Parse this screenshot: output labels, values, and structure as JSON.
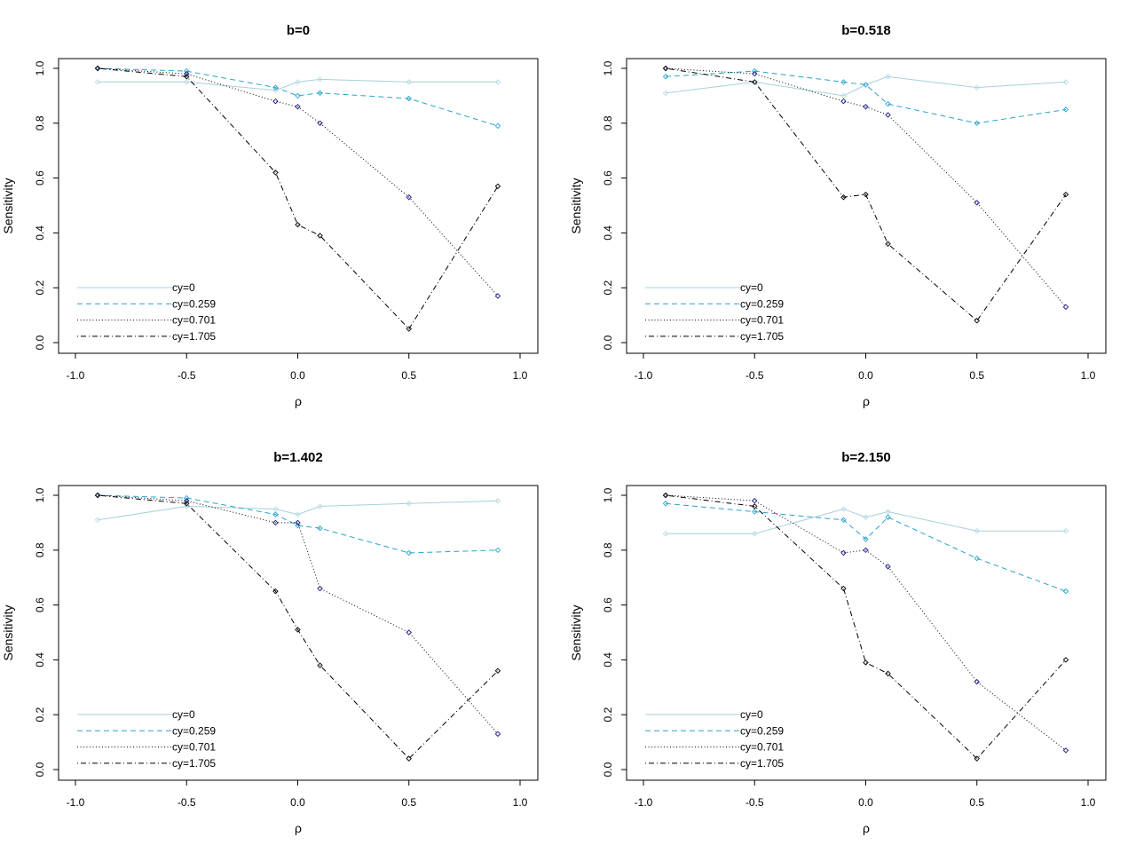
{
  "chart_data": [
    {
      "type": "line",
      "title": "b=0",
      "xlabel": "ρ",
      "ylabel": "Sensitivity",
      "xlim": [
        -1.0,
        1.0
      ],
      "ylim": [
        0.0,
        1.0
      ],
      "x_ticks": [
        "-1.0",
        "-0.5",
        "0.0",
        "0.5",
        "1.0"
      ],
      "y_ticks": [
        "0.0",
        "0.2",
        "0.4",
        "0.6",
        "0.8",
        "1.0"
      ],
      "grid": false,
      "legend_position": "bottom-left",
      "x": [
        -0.9,
        -0.5,
        -0.1,
        0.0,
        0.1,
        0.5,
        0.9
      ],
      "series": [
        {
          "name": "cy=0",
          "values": [
            0.95,
            0.95,
            0.92,
            0.95,
            0.96,
            0.95,
            0.95
          ],
          "color": "#a8d0dc",
          "dash": "solid"
        },
        {
          "name": "cy=0.259",
          "values": [
            1.0,
            0.99,
            0.93,
            0.9,
            0.91,
            0.89,
            0.79
          ],
          "color": "#29a3cc",
          "dash": "dashed"
        },
        {
          "name": "cy=0.701",
          "values": [
            1.0,
            0.98,
            0.88,
            0.86,
            0.8,
            0.53,
            0.17
          ],
          "color": "#000000",
          "dash": "dotted"
        },
        {
          "name": "cy=1.705",
          "values": [
            1.0,
            0.97,
            0.62,
            0.43,
            0.39,
            0.05,
            0.57
          ],
          "color": "#000000",
          "dash": "dotdash"
        }
      ]
    },
    {
      "type": "line",
      "title": "b=0.518",
      "xlabel": "ρ",
      "ylabel": "Sensitivity",
      "xlim": [
        -1.0,
        1.0
      ],
      "ylim": [
        0.0,
        1.0
      ],
      "x_ticks": [
        "-1.0",
        "-0.5",
        "0.0",
        "0.5",
        "1.0"
      ],
      "y_ticks": [
        "0.0",
        "0.2",
        "0.4",
        "0.6",
        "0.8",
        "1.0"
      ],
      "grid": false,
      "legend_position": "bottom-left",
      "x": [
        -0.9,
        -0.5,
        -0.1,
        0.0,
        0.1,
        0.5,
        0.9
      ],
      "series": [
        {
          "name": "cy=0",
          "values": [
            0.91,
            0.95,
            0.9,
            0.94,
            0.97,
            0.93,
            0.95
          ],
          "color": "#a8d0dc",
          "dash": "solid"
        },
        {
          "name": "cy=0.259",
          "values": [
            0.97,
            0.99,
            0.95,
            0.94,
            0.87,
            0.8,
            0.85
          ],
          "color": "#29a3cc",
          "dash": "dashed"
        },
        {
          "name": "cy=0.701",
          "values": [
            1.0,
            0.98,
            0.88,
            0.86,
            0.83,
            0.51,
            0.13
          ],
          "color": "#000000",
          "dash": "dotted"
        },
        {
          "name": "cy=1.705",
          "values": [
            1.0,
            0.95,
            0.53,
            0.54,
            0.36,
            0.08,
            0.54
          ],
          "color": "#000000",
          "dash": "dotdash"
        }
      ]
    },
    {
      "type": "line",
      "title": "b=1.402",
      "xlabel": "ρ",
      "ylabel": "Sensitivity",
      "xlim": [
        -1.0,
        1.0
      ],
      "ylim": [
        0.0,
        1.0
      ],
      "x_ticks": [
        "-1.0",
        "-0.5",
        "0.0",
        "0.5",
        "1.0"
      ],
      "y_ticks": [
        "0.0",
        "0.2",
        "0.4",
        "0.6",
        "0.8",
        "1.0"
      ],
      "grid": false,
      "legend_position": "bottom-left",
      "x": [
        -0.9,
        -0.5,
        -0.1,
        0.0,
        0.1,
        0.5,
        0.9
      ],
      "series": [
        {
          "name": "cy=0",
          "values": [
            0.91,
            0.96,
            0.95,
            0.93,
            0.96,
            0.97,
            0.98
          ],
          "color": "#a8d0dc",
          "dash": "solid"
        },
        {
          "name": "cy=0.259",
          "values": [
            1.0,
            0.99,
            0.93,
            0.89,
            0.88,
            0.79,
            0.8
          ],
          "color": "#29a3cc",
          "dash": "dashed"
        },
        {
          "name": "cy=0.701",
          "values": [
            1.0,
            0.98,
            0.9,
            0.9,
            0.66,
            0.5,
            0.13
          ],
          "color": "#000000",
          "dash": "dotted"
        },
        {
          "name": "cy=1.705",
          "values": [
            1.0,
            0.97,
            0.65,
            0.51,
            0.38,
            0.04,
            0.36
          ],
          "color": "#000000",
          "dash": "dotdash"
        }
      ]
    },
    {
      "type": "line",
      "title": "b=2.150",
      "xlabel": "ρ",
      "ylabel": "Sensitivity",
      "xlim": [
        -1.0,
        1.0
      ],
      "ylim": [
        0.0,
        1.0
      ],
      "x_ticks": [
        "-1.0",
        "-0.5",
        "0.0",
        "0.5",
        "1.0"
      ],
      "y_ticks": [
        "0.0",
        "0.2",
        "0.4",
        "0.6",
        "0.8",
        "1.0"
      ],
      "grid": false,
      "legend_position": "bottom-left",
      "x": [
        -0.9,
        -0.5,
        -0.1,
        0.0,
        0.1,
        0.5,
        0.9
      ],
      "series": [
        {
          "name": "cy=0",
          "values": [
            0.86,
            0.86,
            0.95,
            0.92,
            0.94,
            0.87,
            0.87
          ],
          "color": "#a8d0dc",
          "dash": "solid"
        },
        {
          "name": "cy=0.259",
          "values": [
            0.97,
            0.94,
            0.91,
            0.84,
            0.92,
            0.77,
            0.65
          ],
          "color": "#29a3cc",
          "dash": "dashed"
        },
        {
          "name": "cy=0.701",
          "values": [
            1.0,
            0.98,
            0.79,
            0.8,
            0.74,
            0.32,
            0.07
          ],
          "color": "#000000",
          "dash": "dotted"
        },
        {
          "name": "cy=1.705",
          "values": [
            1.0,
            0.96,
            0.66,
            0.39,
            0.35,
            0.04,
            0.4
          ],
          "color": "#000000",
          "dash": "dotdash"
        }
      ]
    }
  ]
}
